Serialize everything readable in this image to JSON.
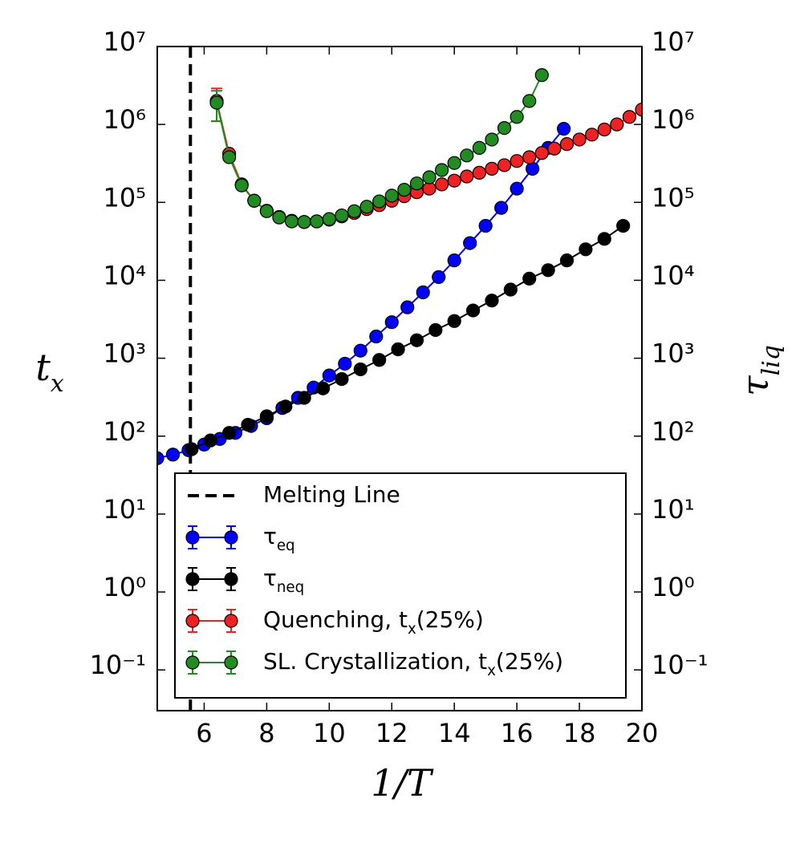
{
  "chart_data": {
    "type": "scatter",
    "xlabel": "1/T",
    "ylabel": [
      "t",
      "x"
    ],
    "y2label": [
      "τ",
      "liq"
    ],
    "xlim": [
      4.5,
      20
    ],
    "xticks": [
      6,
      8,
      10,
      12,
      14,
      16,
      18,
      20
    ],
    "ylim": [
      0.03,
      10000000
    ],
    "y2lim": [
      0.03,
      10000000
    ],
    "log_y": true,
    "yticks": [
      {
        "value": 0.1,
        "label": "10⁻¹"
      },
      {
        "value": 1,
        "label": "10⁰"
      },
      {
        "value": 10,
        "label": "10¹"
      },
      {
        "value": 100,
        "label": "10²"
      },
      {
        "value": 1000,
        "label": "10³"
      },
      {
        "value": 10000,
        "label": "10⁴"
      },
      {
        "value": 100000,
        "label": "10⁵"
      },
      {
        "value": 1000000,
        "label": "10⁶"
      },
      {
        "value": 10000000,
        "label": "10⁷"
      }
    ],
    "y2ticks": [
      {
        "value": 0.1,
        "label": "10⁻¹"
      },
      {
        "value": 1,
        "label": "10⁰"
      },
      {
        "value": 10,
        "label": "10¹"
      },
      {
        "value": 100,
        "label": "10²"
      },
      {
        "value": 1000,
        "label": "10³"
      },
      {
        "value": 10000,
        "label": "10⁴"
      },
      {
        "value": 100000,
        "label": "10⁵"
      },
      {
        "value": 1000000,
        "label": "10⁶"
      },
      {
        "value": 10000000,
        "label": "10⁷"
      }
    ],
    "legend": "lower right",
    "melting_line": {
      "name": "Melting Line",
      "x": 5.56,
      "color": "#000000"
    },
    "series": [
      {
        "name": [
          "τ",
          "eq"
        ],
        "color": "#0000ff",
        "x": [
          4.5,
          5.0,
          5.5,
          6.0,
          6.5,
          7.0,
          7.5,
          8.0,
          8.5,
          9.0,
          9.5,
          10.0,
          10.5,
          11.0,
          11.5,
          12.0,
          12.5,
          13.0,
          13.5,
          14.0,
          14.5,
          15.0,
          15.5,
          16.0,
          16.5,
          17.0,
          17.5
        ],
        "values": [
          52,
          58,
          66,
          78,
          92,
          110,
          135,
          170,
          230,
          310,
          420,
          600,
          850,
          1250,
          1900,
          2900,
          4500,
          7000,
          11000,
          18000,
          30000,
          50000,
          85000,
          150000,
          270000,
          500000,
          880000
        ]
      },
      {
        "name": [
          "τ",
          "neq"
        ],
        "color": "#000000",
        "x": [
          5.6,
          6.2,
          6.8,
          7.4,
          8.0,
          8.6,
          9.2,
          9.8,
          10.4,
          11.0,
          11.6,
          12.2,
          12.8,
          13.4,
          14.0,
          14.6,
          15.2,
          15.8,
          16.4,
          17.0,
          17.6,
          18.2,
          18.8,
          19.4
        ],
        "values": [
          68,
          88,
          110,
          140,
          180,
          240,
          310,
          410,
          540,
          720,
          950,
          1300,
          1700,
          2300,
          3000,
          4100,
          5500,
          7600,
          10500,
          13500,
          18000,
          25000,
          34000,
          50000
        ]
      },
      {
        "name": [
          "Quenching, t",
          "x",
          "(25%)"
        ],
        "color": "#ee2222",
        "x": [
          6.4,
          6.8,
          7.2,
          7.6,
          8.0,
          8.4,
          8.8,
          9.2,
          9.6,
          10.0,
          10.4,
          10.8,
          11.2,
          11.6,
          12.0,
          12.4,
          12.8,
          13.2,
          13.6,
          14.0,
          14.4,
          14.8,
          15.2,
          15.6,
          16.0,
          16.4,
          16.8,
          17.2,
          17.6,
          18.0,
          18.4,
          18.8,
          19.2,
          19.6,
          20.0
        ],
        "values": [
          2000000,
          420000,
          170000,
          105000,
          78000,
          65000,
          58000,
          56000,
          57000,
          60000,
          66000,
          73000,
          82000,
          92000,
          105000,
          120000,
          135000,
          150000,
          170000,
          190000,
          215000,
          240000,
          270000,
          300000,
          340000,
          380000,
          430000,
          490000,
          560000,
          640000,
          740000,
          860000,
          1000000,
          1250000,
          1550000
        ],
        "errors": [
          900000,
          null,
          null,
          null,
          null,
          null,
          null,
          null,
          null,
          null,
          null,
          null,
          null,
          null,
          null,
          null,
          null,
          null,
          null,
          null,
          null,
          null,
          null,
          null,
          null,
          null,
          null,
          null,
          null,
          null,
          null,
          null,
          null,
          null,
          null
        ]
      },
      {
        "name": [
          "SL. Crystallization, t",
          "x",
          "(25%)"
        ],
        "color": "#228b22",
        "x": [
          6.4,
          6.8,
          7.2,
          7.6,
          8.0,
          8.4,
          8.8,
          9.2,
          9.6,
          10.0,
          10.4,
          10.8,
          11.2,
          11.6,
          12.0,
          12.4,
          12.8,
          13.2,
          13.6,
          14.0,
          14.4,
          14.8,
          15.2,
          15.6,
          16.0,
          16.4,
          16.8
        ],
        "values": [
          1900000,
          380000,
          165000,
          105000,
          77000,
          64000,
          57000,
          56000,
          57000,
          61000,
          68000,
          77000,
          88000,
          103000,
          122000,
          145000,
          175000,
          210000,
          260000,
          320000,
          400000,
          500000,
          640000,
          900000,
          1250000,
          2000000,
          4300000
        ],
        "errors": [
          800000,
          null,
          null,
          null,
          null,
          null,
          null,
          null,
          null,
          null,
          null,
          null,
          null,
          null,
          null,
          null,
          null,
          null,
          null,
          null,
          null,
          null,
          null,
          null,
          null,
          null,
          null
        ]
      }
    ]
  }
}
